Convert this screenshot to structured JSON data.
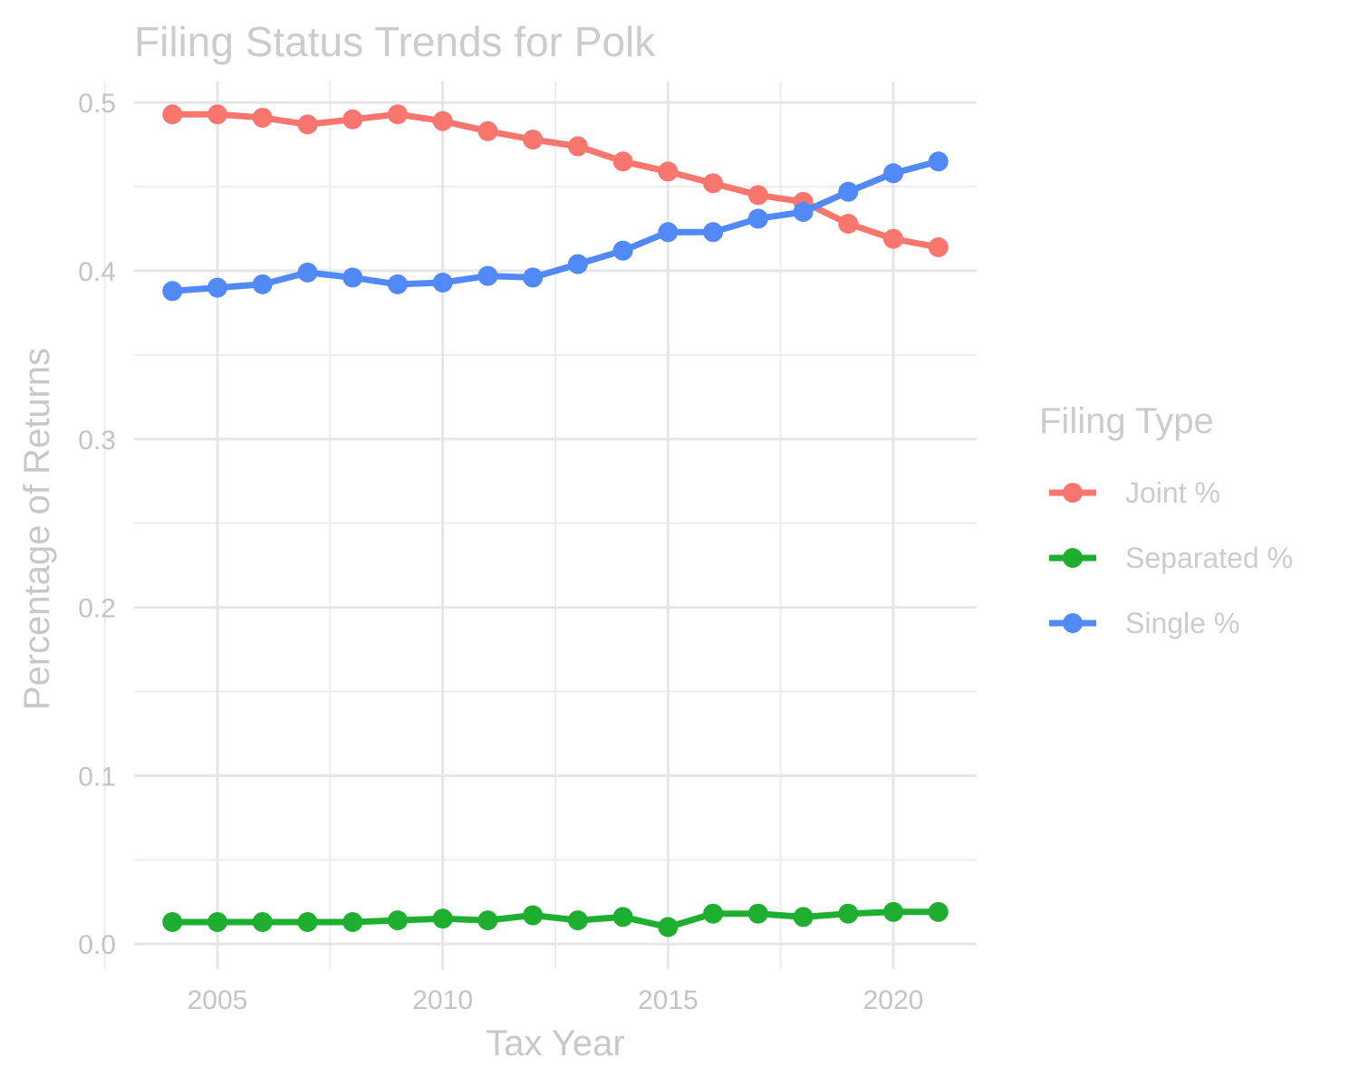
{
  "chart_data": {
    "type": "line",
    "title": "Filing Status Trends for Polk",
    "xlabel": "Tax Year",
    "ylabel": "Percentage of Returns",
    "x": [
      2004,
      2005,
      2006,
      2007,
      2008,
      2009,
      2010,
      2011,
      2012,
      2013,
      2014,
      2015,
      2016,
      2017,
      2018,
      2019,
      2020,
      2021
    ],
    "xlim": [
      2003.15,
      2021.85
    ],
    "ylim": [
      -0.015,
      0.5125
    ],
    "x_ticks": [
      2005,
      2010,
      2015,
      2020
    ],
    "x_tick_labels": [
      "2005",
      "2010",
      "2015",
      "2020"
    ],
    "y_ticks": [
      0.0,
      0.1,
      0.2,
      0.3,
      0.4,
      0.5
    ],
    "y_tick_labels": [
      "0.0",
      "0.1",
      "0.2",
      "0.3",
      "0.4",
      "0.5"
    ],
    "grid": true,
    "legend": {
      "title": "Filing Type",
      "position": "right"
    },
    "series": [
      {
        "name": "Joint %",
        "color": "#F8766D",
        "values": [
          0.493,
          0.493,
          0.491,
          0.487,
          0.49,
          0.493,
          0.489,
          0.483,
          0.478,
          0.474,
          0.465,
          0.459,
          0.452,
          0.445,
          0.441,
          0.428,
          0.419,
          0.414
        ]
      },
      {
        "name": "Separated %",
        "color": "#1FAF30",
        "values": [
          0.013,
          0.013,
          0.013,
          0.013,
          0.013,
          0.014,
          0.015,
          0.014,
          0.017,
          0.014,
          0.016,
          0.01,
          0.018,
          0.018,
          0.016,
          0.018,
          0.019,
          0.019
        ]
      },
      {
        "name": "Single %",
        "color": "#5289F8",
        "values": [
          0.388,
          0.39,
          0.392,
          0.399,
          0.396,
          0.392,
          0.393,
          0.397,
          0.396,
          0.404,
          0.412,
          0.423,
          0.423,
          0.431,
          0.435,
          0.447,
          0.458,
          0.465
        ]
      }
    ]
  }
}
